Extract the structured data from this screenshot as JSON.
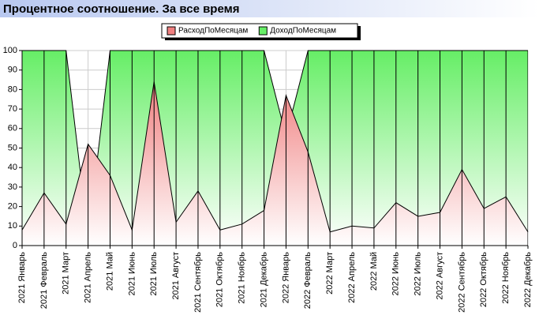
{
  "chart_data": {
    "type": "area",
    "title": "Процентное соотношение. За все время",
    "categories": [
      "2021 Январь",
      "2021 Февраль",
      "2021 Март",
      "2021 Апрель",
      "2021 Май",
      "2021 Июнь",
      "2021 Июль",
      "2021 Август",
      "2021 Сентябрь",
      "2021 Октябрь",
      "2021 Ноябрь",
      "2021 Декабрь",
      "2022 Январь",
      "2022 Февраль",
      "2022 Март",
      "2022 Апрель",
      "2022 Май",
      "2022 Июнь",
      "2022 Июль",
      "2022 Август",
      "2022 Сентябрь",
      "2022 Октябрь",
      "2022 Ноябрь",
      "2022 Декабрь"
    ],
    "series": [
      {
        "name": "ДоходПоМесяцам",
        "color": "#66ee66",
        "values": [
          100,
          100,
          100,
          4,
          100,
          100,
          100,
          100,
          100,
          100,
          100,
          100,
          56,
          100,
          100,
          100,
          100,
          100,
          100,
          100,
          100,
          100,
          100,
          100
        ]
      },
      {
        "name": "РасходПоМесяцам",
        "color": "#f08080",
        "values": [
          8,
          27,
          11,
          52,
          36,
          8,
          84,
          12,
          28,
          8,
          11,
          18,
          77,
          48,
          7,
          10,
          9,
          22,
          15,
          17,
          39,
          19,
          25,
          7
        ]
      }
    ],
    "ylim": [
      0,
      100
    ],
    "yticks": [
      0,
      10,
      20,
      30,
      40,
      50,
      60,
      70,
      80,
      90,
      100
    ],
    "grid": true
  }
}
